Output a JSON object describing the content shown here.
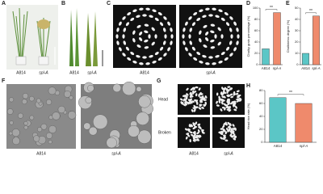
{
  "panels": {
    "A": {
      "label": "A",
      "captions": [
        "A814",
        "spl-A"
      ]
    },
    "B": {
      "label": "B",
      "captions": [
        "A814",
        "spl-A"
      ]
    },
    "C": {
      "label": "C",
      "captions": [
        "A814",
        "spl-A"
      ]
    },
    "F": {
      "label": "F",
      "captions": [
        "A814",
        "spl-A"
      ]
    },
    "G": {
      "label": "G",
      "captions": [
        "A814",
        "spl-A"
      ],
      "rows": [
        "Head",
        "Broken"
      ]
    }
  },
  "chart_data": [
    {
      "type": "bar",
      "label": "D",
      "ylabel": "Chalky grain percentage (%)",
      "categories": [
        "A814",
        "spl-A"
      ],
      "values": [
        28,
        92
      ],
      "colors": [
        "#5bc6c6",
        "#ef8a6c"
      ],
      "ylim": [
        0,
        100
      ],
      "yticks": [
        0,
        20,
        40,
        60,
        80,
        100
      ],
      "annotation": "**"
    },
    {
      "type": "bar",
      "label": "E",
      "ylabel": "Chalkiness degree (%)",
      "categories": [
        "A814",
        "spl-A"
      ],
      "values": [
        10,
        43
      ],
      "colors": [
        "#5bc6c6",
        "#ef8a6c"
      ],
      "ylim": [
        0,
        50
      ],
      "yticks": [
        0,
        10,
        20,
        30,
        40,
        50
      ],
      "annotation": "**"
    },
    {
      "type": "bar",
      "label": "H",
      "ylabel": "Head rice rate (%)",
      "categories": [
        "A814",
        "spl-A"
      ],
      "values": [
        69,
        60
      ],
      "colors": [
        "#5bc6c6",
        "#ef8a6c"
      ],
      "ylim": [
        0,
        80
      ],
      "yticks": [
        0,
        20,
        40,
        60,
        80
      ],
      "annotation": "**"
    }
  ]
}
